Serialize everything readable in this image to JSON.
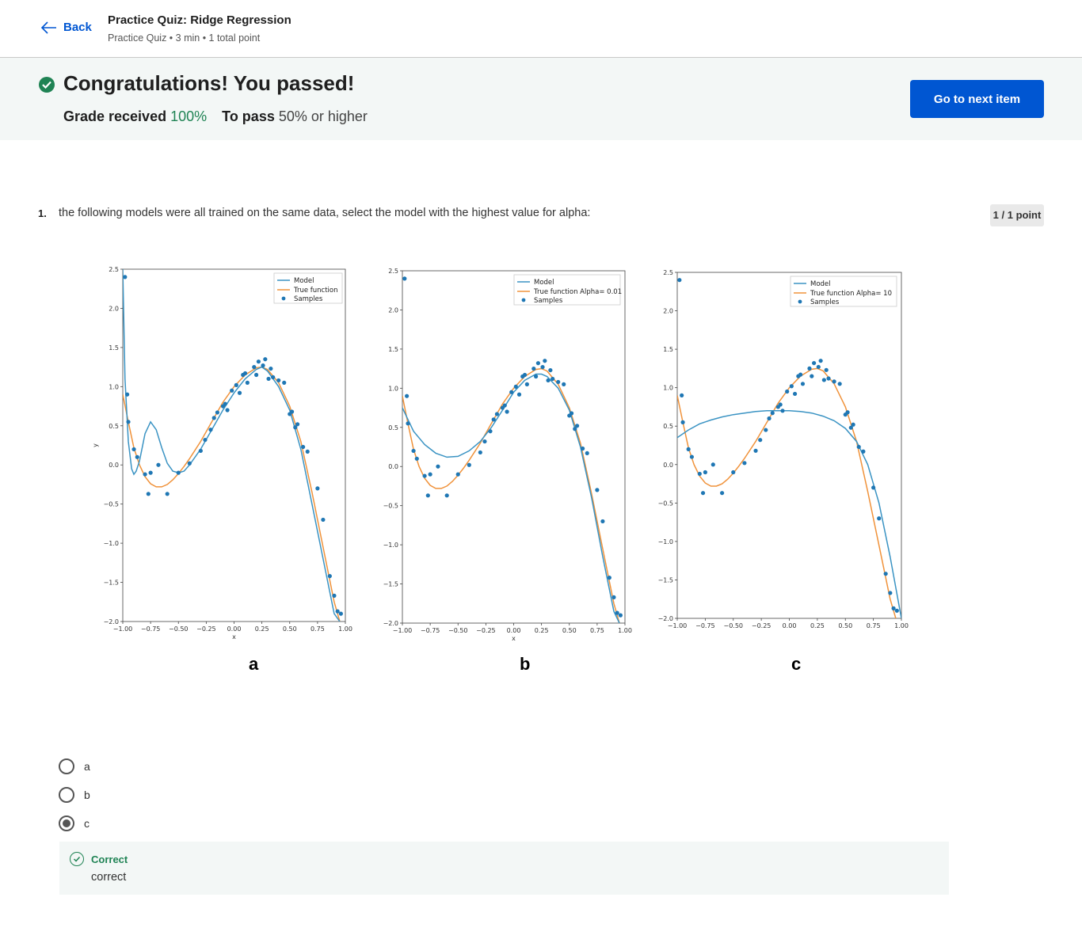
{
  "header": {
    "back_label": "Back",
    "title": "Practice Quiz: Ridge Regression",
    "meta": "Practice Quiz • 3 min • 1 total point"
  },
  "banner": {
    "title": "Congratulations! You passed!",
    "grade_label": "Grade received",
    "grade_value": "100%",
    "pass_label": "To pass",
    "pass_value": "50% or higher",
    "next_button": "Go to next item"
  },
  "question": {
    "number": "1.",
    "text": "the following models were all trained on the same data, select the model with the highest value for alpha:",
    "points": "1 / 1 point",
    "options": [
      {
        "label": "a",
        "selected": false
      },
      {
        "label": "b",
        "selected": false
      },
      {
        "label": "c",
        "selected": true
      }
    ],
    "feedback_title": "Correct",
    "feedback_text": "correct"
  },
  "figure": {
    "panel_letters": [
      "a",
      "b",
      "c"
    ],
    "legend_model": "Model",
    "legends": [
      "True function",
      "True function Alpha= 0.01",
      "True function Alpha= 10"
    ],
    "legend_samples": "Samples",
    "x_ticks": [
      "−1.00",
      "−0.75",
      "−0.50",
      "−0.25",
      "0.00",
      "0.25",
      "0.50",
      "0.75",
      "1.00"
    ],
    "y_ticks": [
      "2.5",
      "2.0",
      "1.5",
      "1.0",
      "0.5",
      "0.0",
      "−0.5",
      "−1.0",
      "−1.5",
      "−2.0"
    ],
    "xlabel": "x",
    "ylabel": "y"
  },
  "chart_data": [
    {
      "type": "line",
      "panel": "a",
      "xlabel": "x",
      "ylabel": "y",
      "xlim": [
        -1.0,
        1.0
      ],
      "ylim": [
        -2.0,
        2.5
      ],
      "series": [
        {
          "name": "Model",
          "color": "#3a93c3",
          "x": [
            -1.0,
            -0.98,
            -0.95,
            -0.92,
            -0.9,
            -0.88,
            -0.85,
            -0.8,
            -0.75,
            -0.7,
            -0.65,
            -0.6,
            -0.55,
            -0.5,
            -0.45,
            -0.4,
            -0.3,
            -0.2,
            -0.1,
            0.0,
            0.1,
            0.2,
            0.25,
            0.3,
            0.4,
            0.5,
            0.6,
            0.7,
            0.8,
            0.9,
            0.95
          ],
          "y": [
            2.5,
            1.1,
            0.3,
            -0.05,
            -0.12,
            -0.08,
            0.05,
            0.4,
            0.55,
            0.45,
            0.22,
            0.02,
            -0.08,
            -0.1,
            -0.08,
            0.0,
            0.2,
            0.45,
            0.7,
            0.92,
            1.1,
            1.22,
            1.25,
            1.2,
            1.0,
            0.7,
            0.2,
            -0.5,
            -1.2,
            -1.9,
            -2.0
          ]
        },
        {
          "name": "True function",
          "color": "#f0923a",
          "x": [
            -1.0,
            -0.95,
            -0.9,
            -0.85,
            -0.8,
            -0.75,
            -0.7,
            -0.65,
            -0.6,
            -0.55,
            -0.5,
            -0.45,
            -0.4,
            -0.3,
            -0.2,
            -0.1,
            0.0,
            0.1,
            0.2,
            0.25,
            0.3,
            0.4,
            0.5,
            0.6,
            0.7,
            0.8,
            0.9,
            0.95
          ],
          "y": [
            0.9,
            0.55,
            0.22,
            0.0,
            -0.15,
            -0.24,
            -0.28,
            -0.28,
            -0.25,
            -0.19,
            -0.11,
            -0.02,
            0.08,
            0.3,
            0.55,
            0.8,
            1.0,
            1.15,
            1.24,
            1.25,
            1.22,
            1.05,
            0.75,
            0.3,
            -0.35,
            -1.05,
            -1.75,
            -2.0
          ]
        }
      ],
      "samples": {
        "name": "Samples",
        "color": "#1f77b4",
        "x": [
          -0.98,
          -0.96,
          -0.95,
          -0.9,
          -0.87,
          -0.8,
          -0.77,
          -0.75,
          -0.68,
          -0.6,
          -0.5,
          -0.4,
          -0.3,
          -0.26,
          -0.21,
          -0.18,
          -0.15,
          -0.1,
          -0.08,
          -0.06,
          -0.02,
          0.02,
          0.05,
          0.08,
          0.1,
          0.12,
          0.18,
          0.2,
          0.22,
          0.26,
          0.28,
          0.31,
          0.33,
          0.35,
          0.4,
          0.45,
          0.5,
          0.52,
          0.55,
          0.57,
          0.62,
          0.66,
          0.75,
          0.8,
          0.86,
          0.9,
          0.93,
          0.96
        ],
        "y": [
          2.4,
          0.9,
          0.55,
          0.2,
          0.1,
          -0.12,
          -0.37,
          -0.1,
          0.0,
          -0.37,
          -0.1,
          0.02,
          0.18,
          0.32,
          0.45,
          0.6,
          0.67,
          0.75,
          0.78,
          0.7,
          0.95,
          1.02,
          0.92,
          1.15,
          1.17,
          1.05,
          1.25,
          1.15,
          1.32,
          1.27,
          1.35,
          1.1,
          1.23,
          1.12,
          1.08,
          1.05,
          0.65,
          0.68,
          0.48,
          0.52,
          0.23,
          0.17,
          -0.3,
          -0.7,
          -1.42,
          -1.67,
          -1.87,
          -1.9
        ]
      }
    },
    {
      "type": "line",
      "panel": "b",
      "xlabel": "x",
      "xlim": [
        -1.0,
        1.0
      ],
      "ylim": [
        -2.0,
        2.5
      ],
      "series": [
        {
          "name": "Model",
          "color": "#3a93c3",
          "x": [
            -1.0,
            -0.9,
            -0.8,
            -0.7,
            -0.6,
            -0.5,
            -0.4,
            -0.3,
            -0.2,
            -0.1,
            0.0,
            0.1,
            0.2,
            0.25,
            0.3,
            0.4,
            0.5,
            0.6,
            0.7,
            0.8,
            0.9,
            0.95
          ],
          "y": [
            0.75,
            0.45,
            0.28,
            0.17,
            0.12,
            0.13,
            0.2,
            0.32,
            0.5,
            0.72,
            0.95,
            1.1,
            1.18,
            1.18,
            1.15,
            1.0,
            0.72,
            0.25,
            -0.4,
            -1.15,
            -1.85,
            -2.0
          ]
        },
        {
          "name": "True function Alpha= 0.01",
          "color": "#f0923a",
          "x": [
            -1.0,
            -0.95,
            -0.9,
            -0.85,
            -0.8,
            -0.75,
            -0.7,
            -0.65,
            -0.6,
            -0.55,
            -0.5,
            -0.45,
            -0.4,
            -0.3,
            -0.2,
            -0.1,
            0.0,
            0.1,
            0.2,
            0.25,
            0.3,
            0.4,
            0.5,
            0.6,
            0.7,
            0.8,
            0.9,
            0.95
          ],
          "y": [
            0.9,
            0.55,
            0.22,
            0.0,
            -0.15,
            -0.24,
            -0.28,
            -0.28,
            -0.25,
            -0.19,
            -0.11,
            -0.02,
            0.08,
            0.3,
            0.55,
            0.8,
            1.0,
            1.15,
            1.24,
            1.25,
            1.22,
            1.05,
            0.75,
            0.3,
            -0.35,
            -1.05,
            -1.75,
            -2.0
          ]
        }
      ],
      "samples": {
        "name": "Samples",
        "color": "#1f77b4"
      }
    },
    {
      "type": "line",
      "panel": "c",
      "xlabel": "",
      "xlim": [
        -1.0,
        1.0
      ],
      "ylim": [
        -2.0,
        2.5
      ],
      "series": [
        {
          "name": "Model",
          "color": "#3a93c3",
          "x": [
            -1.0,
            -0.9,
            -0.8,
            -0.7,
            -0.6,
            -0.5,
            -0.4,
            -0.3,
            -0.2,
            -0.1,
            0.0,
            0.1,
            0.2,
            0.3,
            0.4,
            0.5,
            0.6,
            0.7,
            0.8,
            0.9,
            1.0
          ],
          "y": [
            0.35,
            0.45,
            0.53,
            0.58,
            0.62,
            0.65,
            0.67,
            0.69,
            0.7,
            0.7,
            0.7,
            0.69,
            0.67,
            0.63,
            0.57,
            0.47,
            0.3,
            0.0,
            -0.5,
            -1.2,
            -2.0
          ]
        },
        {
          "name": "True function Alpha= 10",
          "color": "#f0923a",
          "x": [
            -1.0,
            -0.95,
            -0.9,
            -0.85,
            -0.8,
            -0.75,
            -0.7,
            -0.65,
            -0.6,
            -0.55,
            -0.5,
            -0.45,
            -0.4,
            -0.3,
            -0.2,
            -0.1,
            0.0,
            0.1,
            0.2,
            0.25,
            0.3,
            0.4,
            0.5,
            0.6,
            0.7,
            0.8,
            0.9,
            0.95
          ],
          "y": [
            0.9,
            0.55,
            0.22,
            0.0,
            -0.15,
            -0.24,
            -0.28,
            -0.28,
            -0.25,
            -0.19,
            -0.11,
            -0.02,
            0.08,
            0.3,
            0.55,
            0.8,
            1.0,
            1.15,
            1.24,
            1.25,
            1.22,
            1.05,
            0.75,
            0.3,
            -0.35,
            -1.05,
            -1.75,
            -2.0
          ]
        }
      ],
      "samples": {
        "name": "Samples",
        "color": "#1f77b4"
      }
    }
  ]
}
